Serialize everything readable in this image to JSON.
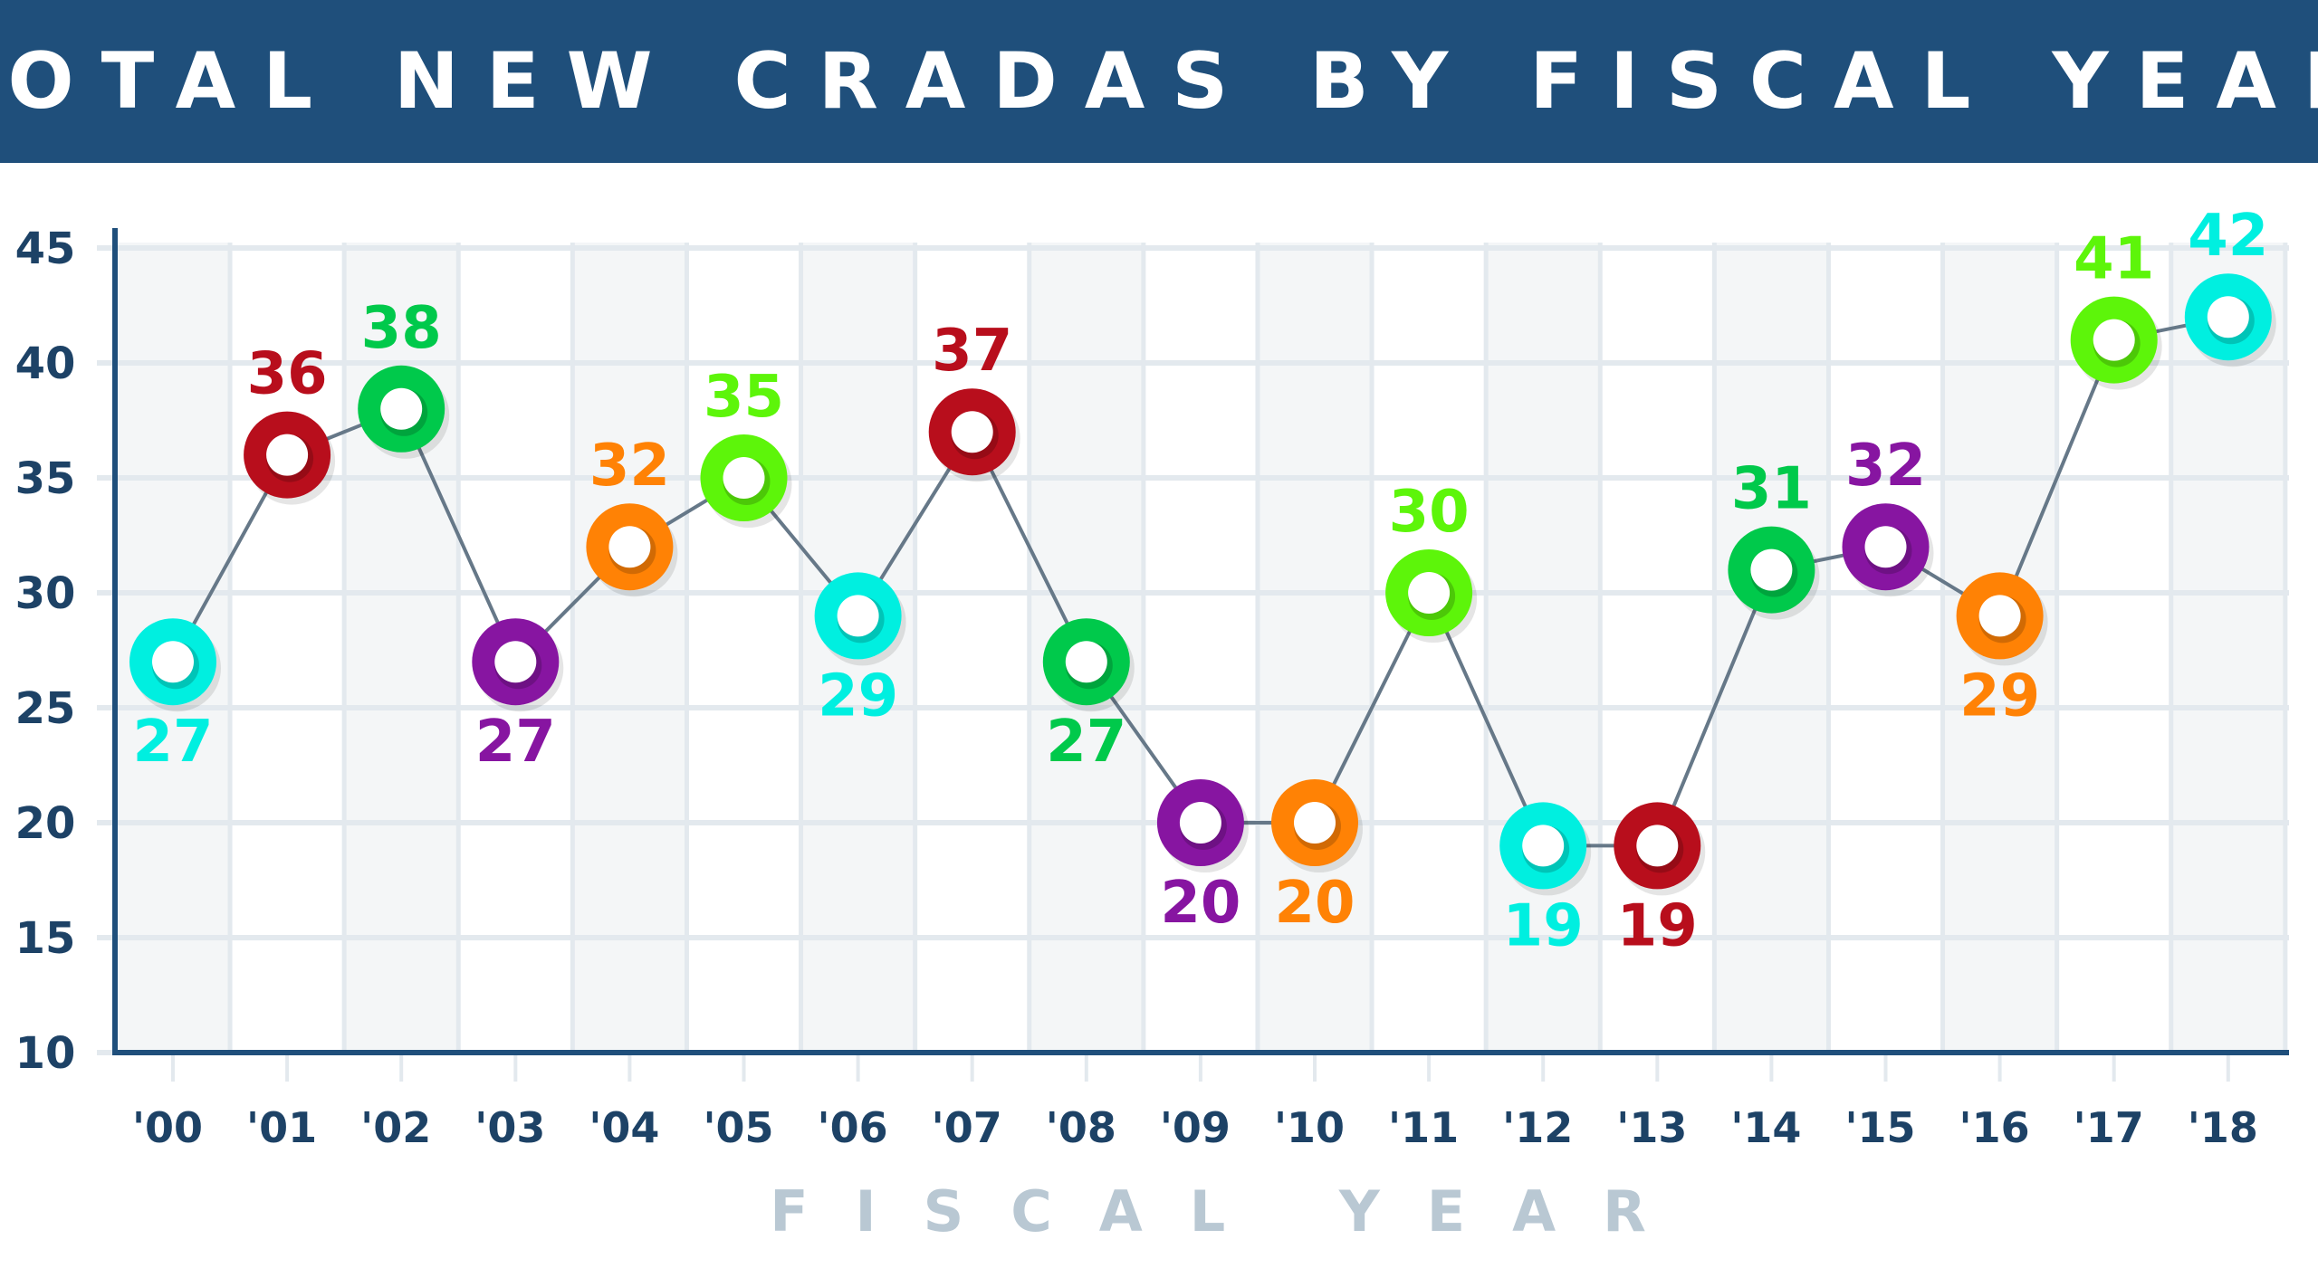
{
  "chart_data": {
    "type": "line",
    "title": "TOTAL NEW CRADAS BY FISCAL YEAR",
    "xlabel": "FISCAL YEAR",
    "ylabel": "",
    "categories": [
      "'00",
      "'01",
      "'02",
      "'03",
      "'04",
      "'05",
      "'06",
      "'07",
      "'08",
      "'09",
      "'10",
      "'11",
      "'12",
      "'13",
      "'14",
      "'15",
      "'16",
      "'17",
      "'18"
    ],
    "values": [
      27,
      36,
      38,
      27,
      32,
      35,
      29,
      37,
      27,
      20,
      20,
      30,
      19,
      19,
      31,
      32,
      29,
      41,
      42
    ],
    "ylim": [
      10,
      45
    ],
    "yticks": [
      10,
      15,
      20,
      25,
      30,
      35,
      40,
      45
    ],
    "grid": true,
    "label_position": [
      "below",
      "above",
      "above",
      "below",
      "above",
      "above",
      "below",
      "above",
      "below",
      "below",
      "below",
      "above",
      "below",
      "below",
      "above",
      "above",
      "below",
      "above",
      "above"
    ],
    "marker_colors": [
      "#00efe0",
      "#b80e1c",
      "#00c94b",
      "#8715a1",
      "#ff8205",
      "#5df50a",
      "#00efe0",
      "#b80e1c",
      "#00c94b",
      "#8715a1",
      "#ff8205",
      "#5df50a",
      "#00efe0",
      "#b80e1c",
      "#00c94b",
      "#8715a1",
      "#ff8205",
      "#5df50a",
      "#00efe0"
    ],
    "line_color": "#667888",
    "axis_color": "#1f4f7b"
  }
}
